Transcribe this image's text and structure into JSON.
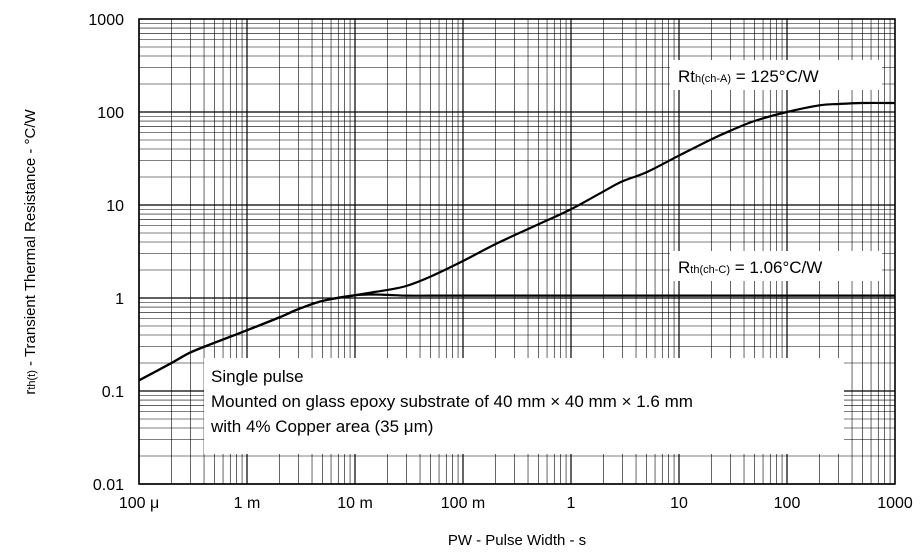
{
  "chart_data": {
    "type": "line",
    "title": "",
    "xlabel": "PW - Pulse Width - s",
    "ylabel": {
      "main": "r",
      "sub": "th(t)",
      "rest": " - Transient Thermal Resistance - °C/W"
    },
    "x_scale": "log",
    "y_scale": "log",
    "xlim": [
      0.0001,
      1000
    ],
    "ylim": [
      0.01,
      1000
    ],
    "grid": true,
    "x_ticks": [
      {
        "value": 0.0001,
        "label": "100 μ"
      },
      {
        "value": 0.001,
        "label": "1 m"
      },
      {
        "value": 0.01,
        "label": "10 m"
      },
      {
        "value": 0.1,
        "label": "100 m"
      },
      {
        "value": 1,
        "label": "1"
      },
      {
        "value": 10,
        "label": "10"
      },
      {
        "value": 100,
        "label": "100"
      },
      {
        "value": 1000,
        "label": "1000"
      }
    ],
    "y_ticks": [
      {
        "value": 0.01,
        "label": "0.01"
      },
      {
        "value": 0.1,
        "label": "0.1"
      },
      {
        "value": 1,
        "label": "1"
      },
      {
        "value": 10,
        "label": "10"
      },
      {
        "value": 100,
        "label": "100"
      },
      {
        "value": 1000,
        "label": "1000"
      }
    ],
    "series": [
      {
        "name": "",
        "x": [
          0.0001,
          0.0002,
          0.0003,
          0.0005,
          0.001,
          0.002,
          0.003,
          0.005,
          0.01,
          0.015,
          0.02,
          0.03,
          0.05,
          0.1,
          0.2,
          0.5,
          1,
          2,
          3,
          5,
          10,
          20,
          30,
          50,
          100,
          200,
          300,
          500,
          1000
        ],
        "y": [
          0.13,
          0.2,
          0.26,
          0.33,
          0.45,
          0.62,
          0.76,
          0.93,
          1.07,
          1.16,
          1.22,
          1.35,
          1.7,
          2.5,
          3.8,
          6.2,
          9.0,
          14,
          18,
          22.5,
          34,
          51,
          63,
          80,
          100,
          118,
          122,
          125,
          125
        ]
      },
      {
        "name": "",
        "x": [
          0.0001,
          0.0002,
          0.0003,
          0.0005,
          0.001,
          0.002,
          0.003,
          0.005,
          0.01,
          0.015,
          0.02,
          0.03,
          0.05,
          0.1,
          1,
          10,
          100,
          1000
        ],
        "y": [
          0.13,
          0.2,
          0.26,
          0.33,
          0.45,
          0.62,
          0.76,
          0.93,
          1.07,
          1.09,
          1.08,
          1.06,
          1.06,
          1.06,
          1.06,
          1.06,
          1.06,
          1.06
        ]
      }
    ],
    "annotations": [
      {
        "main": "Rt",
        "sub": "h(ch-A)",
        "rest": " = 125°C/W"
      },
      {
        "main": "R",
        "sub": "th(ch-C)",
        "rest": " = 1.06°C/W"
      }
    ],
    "note_lines": [
      "Single pulse",
      "Mounted on glass epoxy substrate of 40 mm × 40 mm × 1.6 mm",
      "with 4% Copper area (35 μm)"
    ]
  }
}
